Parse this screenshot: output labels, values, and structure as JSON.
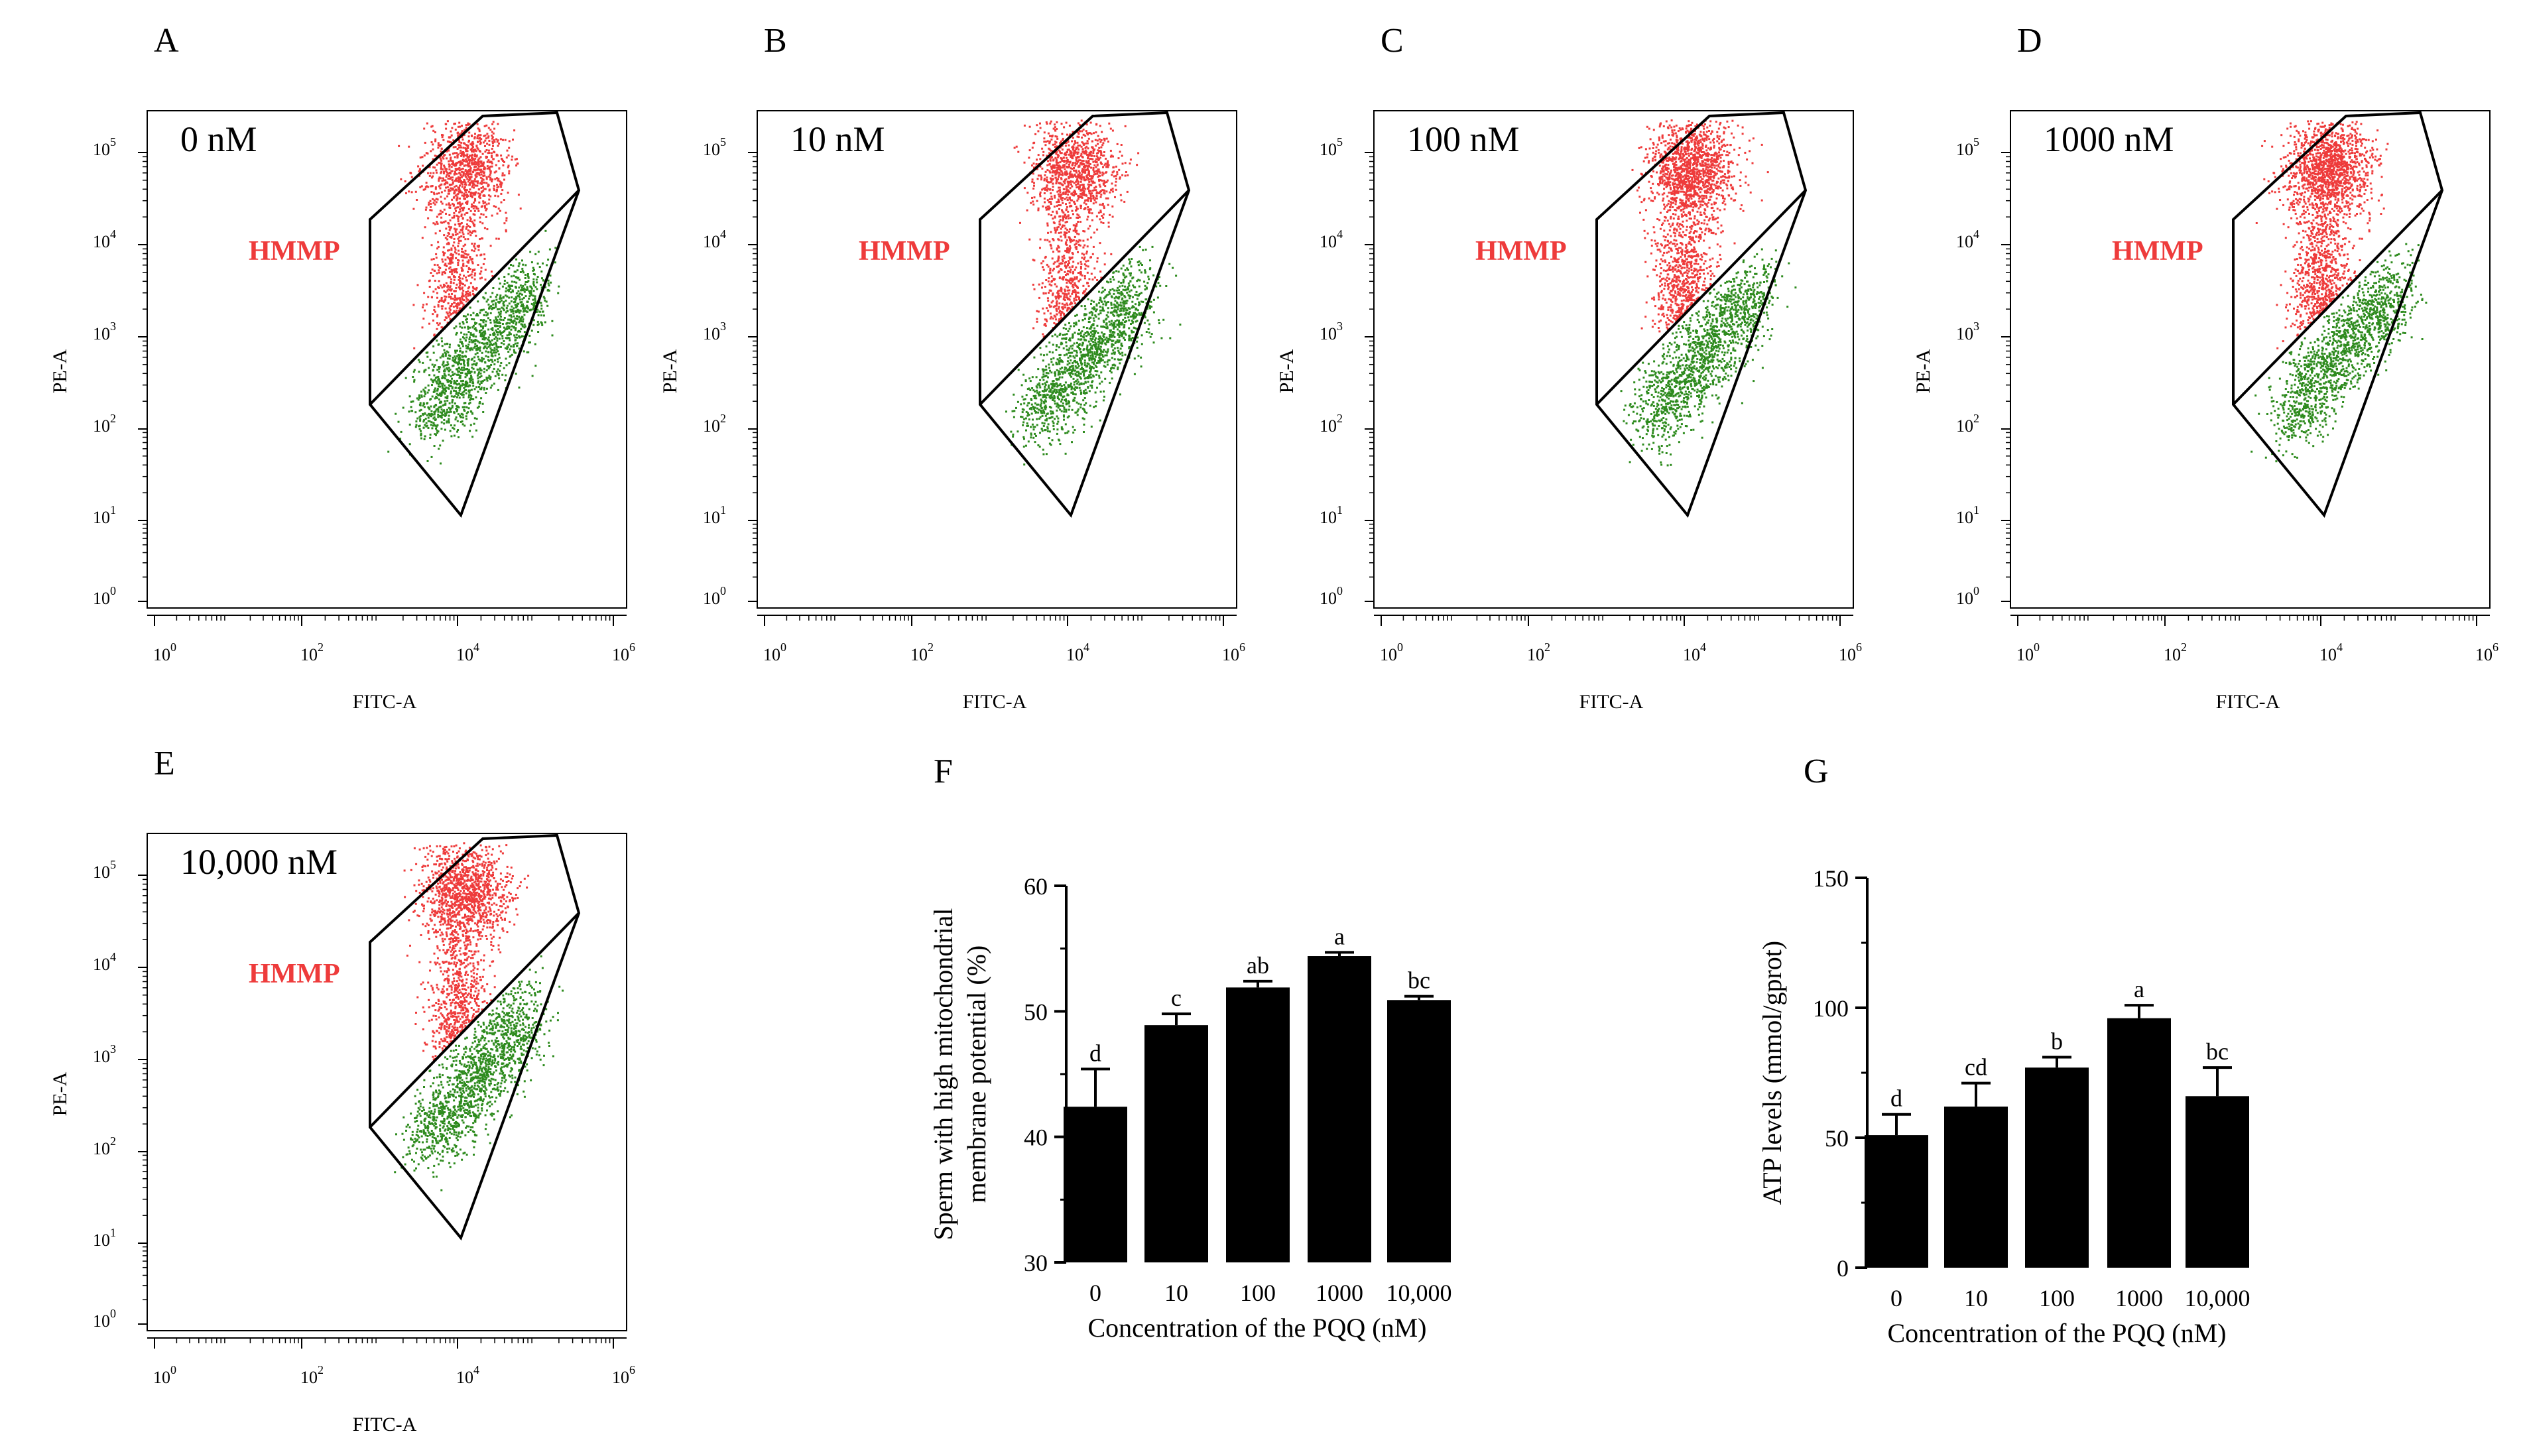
{
  "flow_panels": [
    {
      "letter": "A",
      "concentration": "0 nM",
      "gate_label": "HMMP",
      "xlabel": "FITC-A",
      "ylabel": "PE-A"
    },
    {
      "letter": "B",
      "concentration": "10 nM",
      "gate_label": "HMMP",
      "xlabel": "FITC-A",
      "ylabel": "PE-A"
    },
    {
      "letter": "C",
      "concentration": "100 nM",
      "gate_label": "HMMP",
      "xlabel": "FITC-A",
      "ylabel": "PE-A"
    },
    {
      "letter": "D",
      "concentration": "1000 nM",
      "gate_label": "HMMP",
      "xlabel": "FITC-A",
      "ylabel": "PE-A"
    },
    {
      "letter": "E",
      "concentration": "10,000 nM",
      "gate_label": "HMMP",
      "xlabel": "FITC-A",
      "ylabel": "PE-A"
    }
  ],
  "flow_axis": {
    "tick_base": "10",
    "x_exponents": [
      "0",
      "2",
      "4",
      "6"
    ],
    "y_exponents": [
      "0",
      "1",
      "2",
      "3",
      "4",
      "5"
    ]
  },
  "colors": {
    "hmmp": "#ee3b3b",
    "low": "#2e8b1e",
    "bar": "#000000"
  },
  "chart_data": [
    {
      "panel": "F",
      "type": "bar",
      "categories": [
        "0",
        "10",
        "100",
        "1000",
        "10,000"
      ],
      "values": [
        42.4,
        48.9,
        51.9,
        54.4,
        50.9
      ],
      "errors": [
        3.0,
        0.9,
        0.5,
        0.3,
        0.3
      ],
      "significance": [
        "d",
        "c",
        "ab",
        "a",
        "bc"
      ],
      "xlabel": "Concentration of the PQQ (nM)",
      "ylabel_lines": [
        "Sperm with high mitochondrial",
        "membrane potential (%)"
      ],
      "ylim": [
        30,
        60
      ],
      "yticks": [
        "30",
        "40",
        "50",
        "60"
      ]
    },
    {
      "panel": "G",
      "type": "bar",
      "categories": [
        "0",
        "10",
        "100",
        "1000",
        "10,000"
      ],
      "values": [
        51,
        62,
        77,
        96,
        66
      ],
      "errors": [
        8,
        9,
        4,
        5,
        11
      ],
      "significance": [
        "d",
        "cd",
        "b",
        "a",
        "bc"
      ],
      "xlabel": "Concentration of the PQQ (nM)",
      "ylabel_lines": [
        "ATP levels (mmol/gprot)"
      ],
      "ylim": [
        0,
        150
      ],
      "yticks": [
        "0",
        "50",
        "100",
        "150"
      ]
    }
  ]
}
